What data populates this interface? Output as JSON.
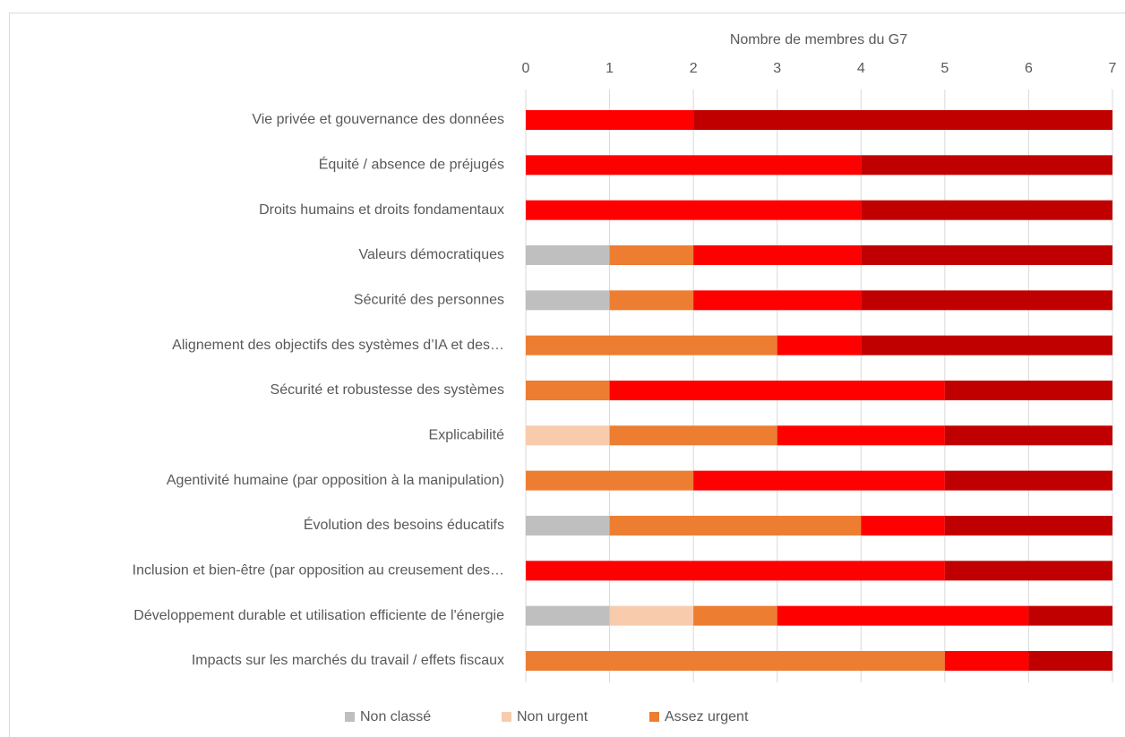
{
  "chart_data": {
    "type": "stacked_bar_horizontal",
    "xlabel": "Nombre de membres du G7",
    "categories": [
      "Vie privée et gouvernance des données",
      "Équité / absence de préjugés",
      "Droits humains et droits fondamentaux",
      "Valeurs démocratiques",
      "Sécurité des personnes",
      "Alignement des objectifs des systèmes d’IA et des…",
      "Sécurité et robustesse des systèmes",
      "Explicabilité",
      "Agentivité humaine (par opposition à la manipulation)",
      "Évolution des besoins éducatifs",
      "Inclusion et bien-être (par opposition au creusement des…",
      "Développement durable et utilisation efficiente de l'énergie",
      "Impacts sur les marchés du travail / effets fiscaux"
    ],
    "series": [
      {
        "name": "Non classé",
        "color": "#bfbfbf",
        "values": [
          0,
          0,
          0,
          1,
          1,
          0,
          0,
          0,
          0,
          1,
          0,
          1,
          0
        ]
      },
      {
        "name": "Non urgent",
        "color": "#f8cbad",
        "values": [
          0,
          0,
          0,
          0,
          0,
          0,
          0,
          1,
          0,
          0,
          0,
          1,
          0
        ]
      },
      {
        "name": "Assez urgent",
        "color": "#ed7d31",
        "values": [
          0,
          0,
          0,
          1,
          1,
          3,
          1,
          2,
          2,
          3,
          0,
          1,
          5
        ]
      },
      {
        "color": "#ff0000",
        "values": [
          2,
          4,
          4,
          2,
          2,
          1,
          4,
          2,
          3,
          1,
          5,
          3,
          1
        ]
      },
      {
        "color": "#c00000",
        "values": [
          5,
          3,
          3,
          3,
          3,
          3,
          2,
          2,
          2,
          2,
          2,
          1,
          1
        ]
      }
    ],
    "xlim": [
      0,
      7
    ],
    "xticks": [
      0,
      1,
      2,
      3,
      4,
      5,
      6,
      7
    ],
    "grid": true,
    "legend": "bottom"
  }
}
